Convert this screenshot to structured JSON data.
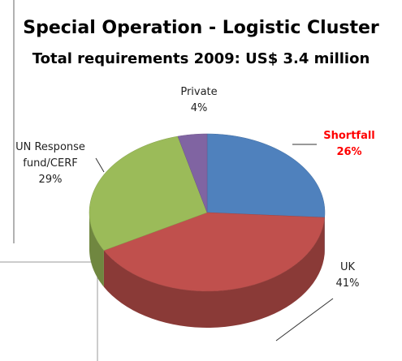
{
  "chart_data": {
    "type": "pie",
    "title": "Special Operation - Logistic Cluster",
    "subtitle": "Total requirements 2009: US$ 3.4 million",
    "categories": [
      "Shortfall",
      "UK",
      "UN Response fund/CERF",
      "Private"
    ],
    "values": [
      26,
      41,
      29,
      4
    ],
    "value_labels": [
      "26%",
      "41%",
      "29%",
      "4%"
    ],
    "colors": [
      "#4f81bd",
      "#c0504d",
      "#9bbb59",
      "#8064a2"
    ]
  }
}
